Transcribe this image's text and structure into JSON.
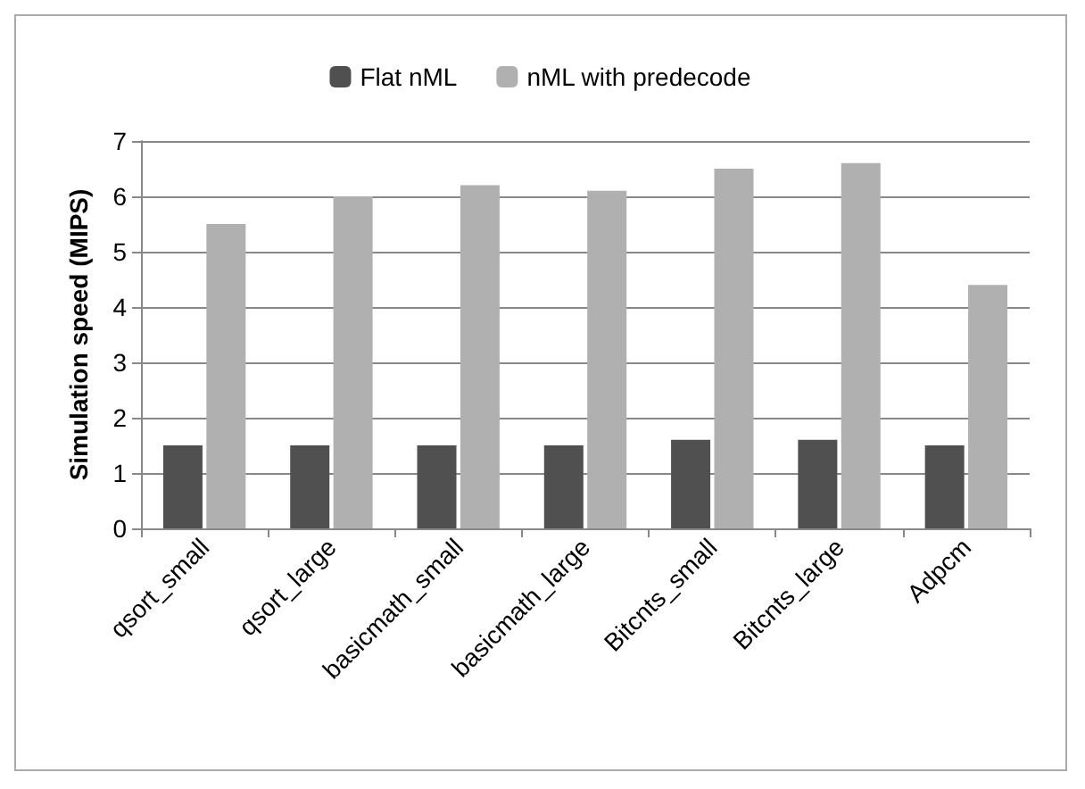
{
  "chart_data": {
    "type": "bar",
    "ylabel": "Simulation speed (MIPS)",
    "categories": [
      "qsort_small",
      "qsort_large",
      "basicmath_small",
      "basicmath_large",
      "Bitcnts_small",
      "Bitcnts_large",
      "Adpcm"
    ],
    "series": [
      {
        "name": "Flat nML",
        "color": "#505050",
        "values": [
          1.5,
          1.5,
          1.5,
          1.5,
          1.6,
          1.6,
          1.5
        ]
      },
      {
        "name": "nML with predecode",
        "color": "#b0b0b0",
        "values": [
          5.5,
          6.0,
          6.2,
          6.1,
          6.5,
          6.6,
          4.4
        ]
      }
    ],
    "ylim": [
      0,
      7
    ],
    "yticks": [
      0,
      1,
      2,
      3,
      4,
      5,
      6,
      7
    ],
    "grid": "y",
    "legend": "top"
  }
}
